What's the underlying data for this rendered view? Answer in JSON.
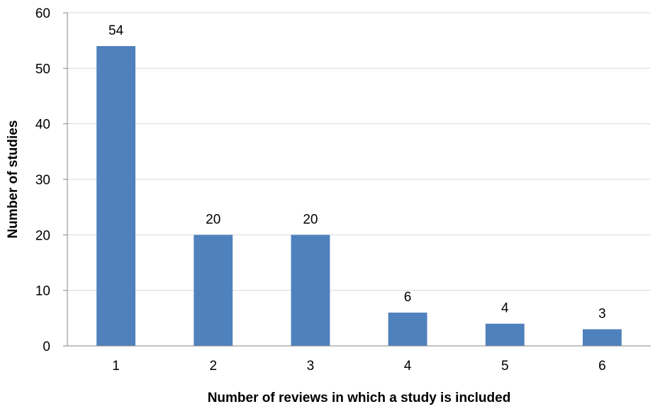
{
  "chart_data": {
    "type": "bar",
    "categories": [
      "1",
      "2",
      "3",
      "4",
      "5",
      "6"
    ],
    "values": [
      54,
      20,
      20,
      6,
      4,
      3
    ],
    "data_labels": [
      "54",
      "20",
      "20",
      "6",
      "4",
      "3"
    ],
    "title": "",
    "xlabel": "Number of reviews in which a study is included",
    "ylabel": "Number of studies",
    "ylim": [
      0,
      60
    ],
    "yticks": [
      0,
      10,
      20,
      30,
      40,
      50,
      60
    ],
    "ytick_labels": [
      "0",
      "10",
      "20",
      "30",
      "40",
      "50",
      "60"
    ],
    "grid": true,
    "legend": "none",
    "bar_color": "#4F81BD",
    "grid_color": "#D9D9D9",
    "axis_color": "#868686"
  }
}
